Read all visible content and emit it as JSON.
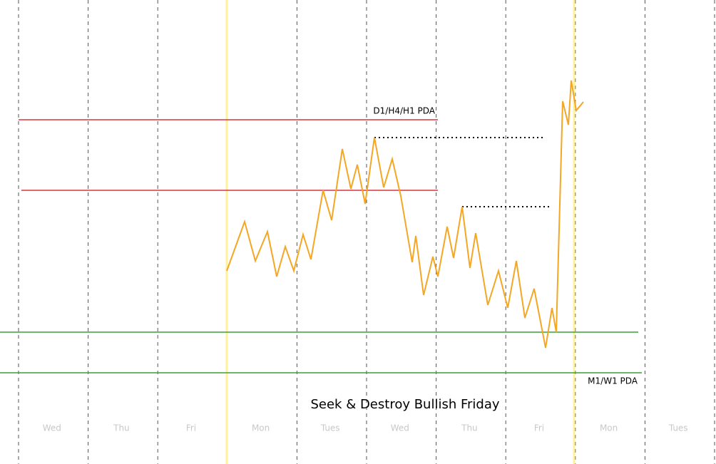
{
  "title": "Seek & Destroy Bullish Friday",
  "levels": {
    "upper_label": "D1/H4/H1 PDA",
    "lower_label": "M1/W1 PDA"
  },
  "days": [
    "Wed",
    "Thu",
    "Fri",
    "Mon",
    "Tues",
    "Wed",
    "Thu",
    "Fri",
    "Mon",
    "Tues"
  ]
}
